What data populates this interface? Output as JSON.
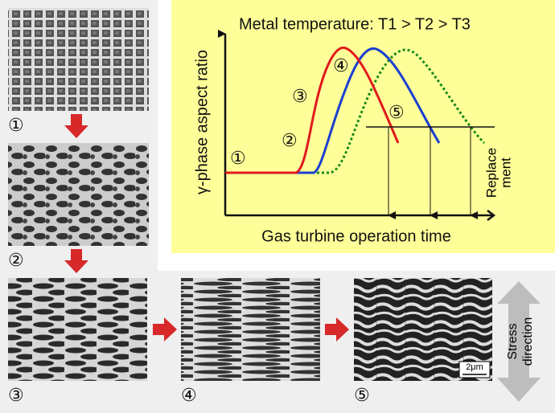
{
  "diagram": {
    "title": "Metal temperature: T1 > T2 > T3",
    "y_axis_label": "γ-phase aspect ratio",
    "x_axis_label": "Gas turbine operation time",
    "replacement_label": [
      "Replace",
      "ment"
    ],
    "curve_stage_labels": [
      "①",
      "②",
      "③",
      "④",
      "⑤"
    ],
    "micrograph_labels": [
      "①",
      "②",
      "③",
      "④",
      "⑤"
    ],
    "scale_bar": "2μm",
    "stress_label": [
      "Stress",
      "direction"
    ]
  }
}
